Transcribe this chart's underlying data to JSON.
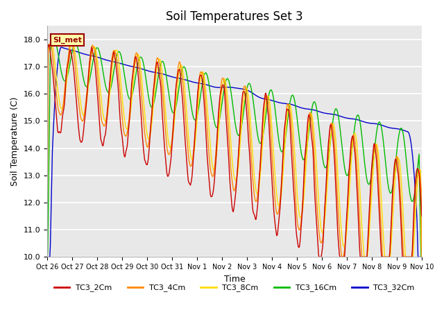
{
  "title": "Soil Temperatures Set 3",
  "xlabel": "Time",
  "ylabel": "Soil Temperature (C)",
  "ylim": [
    10.0,
    18.5
  ],
  "yticks": [
    10.0,
    11.0,
    12.0,
    13.0,
    14.0,
    15.0,
    16.0,
    17.0,
    18.0
  ],
  "x_tick_labels": [
    "Oct 26",
    "Oct 27",
    "Oct 28",
    "Oct 29",
    "Oct 30",
    "Oct 31",
    "Nov 1",
    "Nov 2",
    "Nov 3",
    "Nov 4",
    "Nov 5",
    "Nov 6",
    "Nov 7",
    "Nov 8",
    "Nov 9",
    "Nov 10"
  ],
  "series_colors": {
    "TC3_2Cm": "#cc0000",
    "TC3_4Cm": "#ff8800",
    "TC3_8Cm": "#ffdd00",
    "TC3_16Cm": "#00bb00",
    "TC3_32Cm": "#0000cc"
  },
  "annotation_text": "SI_met",
  "annotation_color": "#990000",
  "annotation_bg": "#ffffaa",
  "plot_bg_color": "#e8e8e8",
  "grid_color": "#ffffff",
  "title_fontsize": 12,
  "label_fontsize": 9,
  "tick_fontsize": 8
}
